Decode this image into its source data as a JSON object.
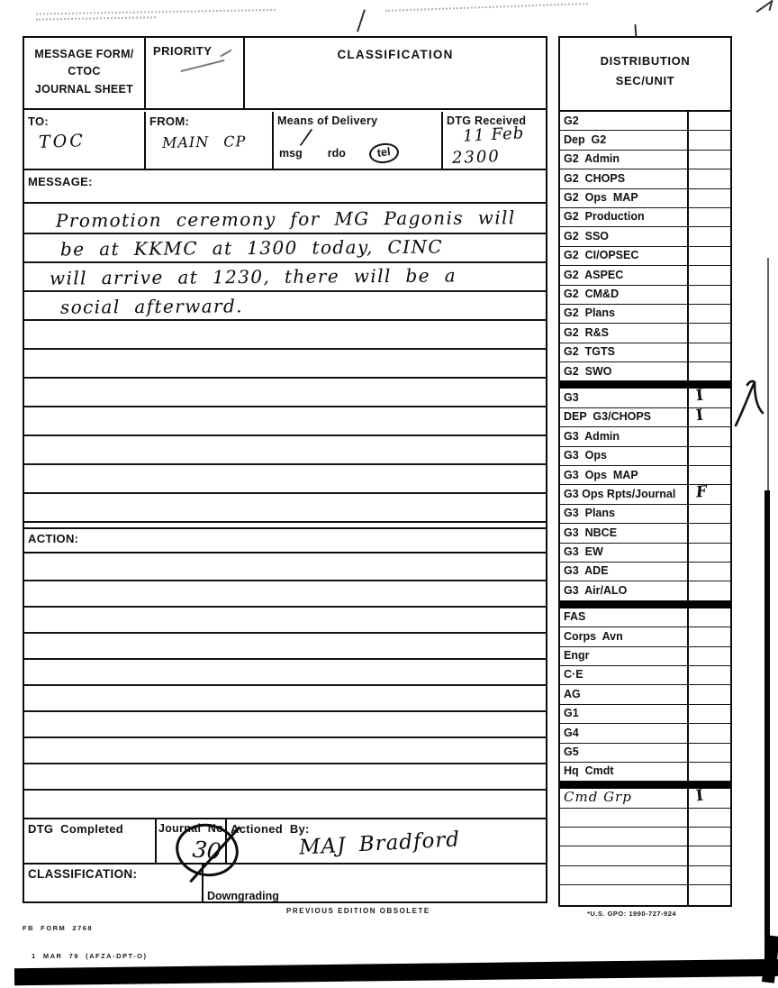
{
  "colors": {
    "ink": "#121212",
    "paper": "#ffffff"
  },
  "form": {
    "title": "MESSAGE FORM/\nCTOC\nJOURNAL SHEET",
    "priority_label": "PRIORITY",
    "classification_label": "CLASSIFICATION",
    "to": {
      "label": "TO:",
      "value": "TOC"
    },
    "from": {
      "label": "FROM:",
      "value": "MAIN CP"
    },
    "means": {
      "label": "Means of Delivery",
      "options": [
        "msg",
        "rdo",
        "tel"
      ],
      "circled_option": "tel",
      "handwritten_mark": "/"
    },
    "dtg_received": {
      "label": "DTG Received",
      "line1": "11 Feb",
      "line2": "2300"
    },
    "message": {
      "label": "MESSAGE:",
      "lines": [
        "Promotion ceremony for MG Pagonis will",
        "be at KKMC at 1300 today, CINC",
        "will arrive at 1230, there will be a",
        "social afterward."
      ]
    },
    "action": {
      "label": "ACTION:",
      "value": ""
    },
    "bottom": {
      "dtg_completed_label": "DTG  Completed",
      "journal_label": "Journal  No.",
      "journal_value": "30",
      "actioned_by_label": "Actioned  By:",
      "actioned_by_value": "MAJ Bradford",
      "classification_label": "CLASSIFICATION:",
      "downgrading_label": "Downgrading"
    }
  },
  "page_footer": {
    "form_number": "FB  FORM  2768",
    "form_date": "1  MAR  79  (AFZA-DPT-O)",
    "previous_edition": "PREVIOUS  EDITION  OBSOLETE",
    "gpo": "*U.S. GPO: 1990-727-924"
  },
  "distribution": {
    "header": "DISTRIBUTION\nSEC/UNIT",
    "sections": [
      {
        "name": "g2",
        "rows": [
          {
            "label": "G2",
            "value": ""
          },
          {
            "label": "Dep  G2",
            "value": ""
          },
          {
            "label": "G2  Admin",
            "value": ""
          },
          {
            "label": "G2  CHOPS",
            "value": ""
          },
          {
            "label": "G2  Ops  MAP",
            "value": ""
          },
          {
            "label": "G2  Production",
            "value": ""
          },
          {
            "label": "G2  SSO",
            "value": ""
          },
          {
            "label": "G2  CI/OPSEC",
            "value": ""
          },
          {
            "label": "G2  ASPEC",
            "value": ""
          },
          {
            "label": "G2  CM&D",
            "value": ""
          },
          {
            "label": "G2  Plans",
            "value": ""
          },
          {
            "label": "G2  R&S",
            "value": ""
          },
          {
            "label": "G2  TGTS",
            "value": ""
          },
          {
            "label": "G2  SWO",
            "value": ""
          }
        ]
      },
      {
        "name": "g3",
        "rows": [
          {
            "label": "G3",
            "value": "I"
          },
          {
            "label": "DEP  G3/CHOPS",
            "value": "I"
          },
          {
            "label": "G3  Admin",
            "value": ""
          },
          {
            "label": "G3  Ops",
            "value": ""
          },
          {
            "label": "G3  Ops  MAP",
            "value": ""
          },
          {
            "label": "G3 Ops Rpts/Journal",
            "value": "F"
          },
          {
            "label": "G3  Plans",
            "value": ""
          },
          {
            "label": "G3  NBCE",
            "value": ""
          },
          {
            "label": "G3  EW",
            "value": ""
          },
          {
            "label": "G3  ADE",
            "value": ""
          },
          {
            "label": "G3  Air/ALO",
            "value": ""
          }
        ]
      },
      {
        "name": "staff",
        "rows": [
          {
            "label": "FAS",
            "value": ""
          },
          {
            "label": "Corps  Avn",
            "value": ""
          },
          {
            "label": "Engr",
            "value": ""
          },
          {
            "label": "C·E",
            "value": ""
          },
          {
            "label": "AG",
            "value": ""
          },
          {
            "label": "G1",
            "value": ""
          },
          {
            "label": "G4",
            "value": ""
          },
          {
            "label": "G5",
            "value": ""
          },
          {
            "label": "Hq  Cmdt",
            "value": ""
          }
        ]
      },
      {
        "name": "bottom",
        "rows": [
          {
            "label": "Cmd Grp",
            "value": "I",
            "handwritten": true
          },
          {
            "label": "",
            "value": ""
          },
          {
            "label": "",
            "value": ""
          },
          {
            "label": "",
            "value": ""
          },
          {
            "label": "",
            "value": ""
          },
          {
            "label": "",
            "value": ""
          }
        ]
      }
    ]
  }
}
